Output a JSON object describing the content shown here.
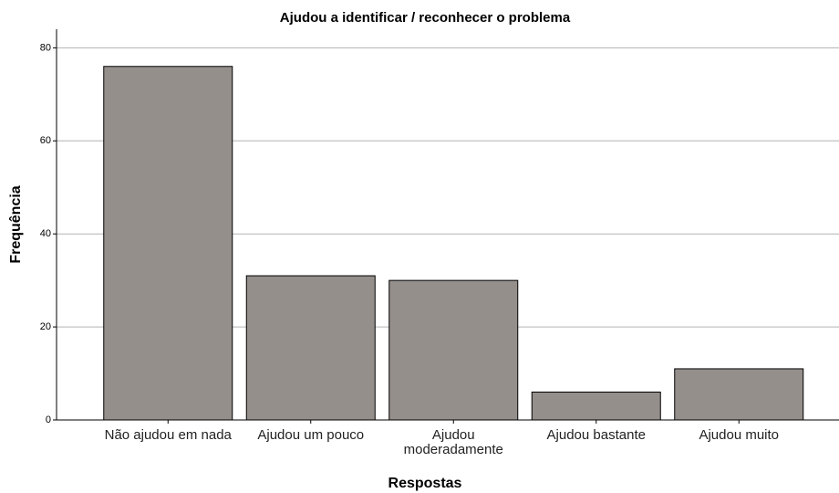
{
  "chart_data": {
    "type": "bar",
    "title": "Ajudou a identificar / reconhecer o problema",
    "x_label": "Respostas",
    "y_label": "Frequência",
    "categories": [
      "Não ajudou em nada",
      "Ajudou um pouco",
      "Ajudou moderadamente",
      "Ajudou bastante",
      "Ajudou muito"
    ],
    "values": [
      76,
      31,
      30,
      6,
      11
    ],
    "color": "#958f8c",
    "ylim": [
      0,
      84
    ],
    "yticks": [
      0,
      20,
      40,
      60,
      80
    ],
    "grid": true
  }
}
